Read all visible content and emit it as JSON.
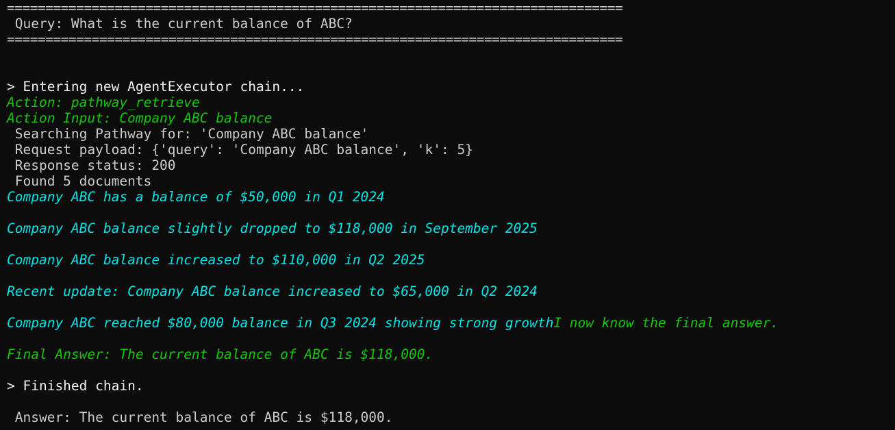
{
  "terminal": {
    "rule": "================================================================================",
    "query_line": " Query: What is the current balance of ABC?",
    "entering": "> Entering new AgentExecutor chain...",
    "action": "Action: pathway_retrieve",
    "action_input": "Action Input: Company ABC balance",
    "searching": " Searching Pathway for: 'Company ABC balance'",
    "payload": " Request payload: {'query': 'Company ABC balance', 'k': 5}",
    "status": " Response status: 200",
    "found": " Found 5 documents",
    "documents": [
      "Company ABC has a balance of $50,000 in Q1 2024",
      "Company ABC balance slightly dropped to $118,000 in September 2025",
      "Company ABC balance increased to $110,000 in Q2 2025",
      "Recent update: Company ABC balance increased to $65,000 in Q2 2024",
      "Company ABC reached $80,000 balance in Q3 2024 showing strong growth"
    ],
    "thought": "I now know the final answer.",
    "final_answer": "Final Answer: The current balance of ABC is $118,000.",
    "finished": "> Finished chain.",
    "answer": " Answer: The current balance of ABC is $118,000."
  },
  "colors": {
    "background": "#0c0c0c",
    "text": "#cccccc",
    "bright": "#f2f2f2",
    "green": "#16c60c",
    "cyan": "#00e5e5"
  }
}
